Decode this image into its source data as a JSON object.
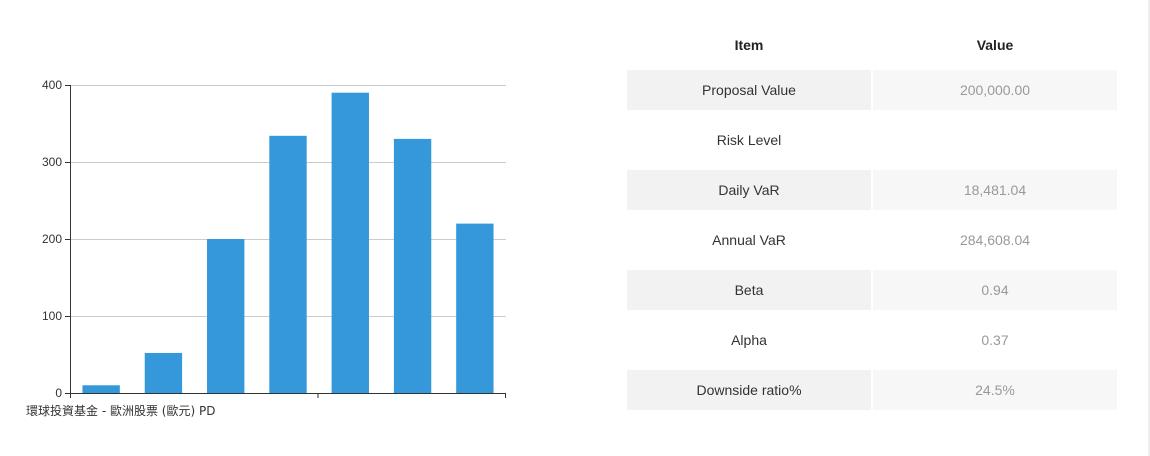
{
  "colors": {
    "bar": "#3498db",
    "grid": "#cccccc",
    "axis": "#333333"
  },
  "chart_data": {
    "type": "bar",
    "series_label": "環球投資基金 - 歐洲股票 (歐元) PD",
    "categories": [
      "",
      "",
      "",
      "",
      "",
      "",
      ""
    ],
    "values": [
      10,
      52,
      200,
      334,
      390,
      330,
      220
    ],
    "yticks": [
      0,
      100,
      200,
      300,
      400
    ],
    "ylim": [
      0,
      400
    ],
    "grid": true
  },
  "table": {
    "headers": {
      "item": "Item",
      "value": "Value"
    },
    "rows": [
      {
        "item": "Proposal Value",
        "value": "200,000.00"
      },
      {
        "item": "Risk Level",
        "value": ""
      },
      {
        "item": "Daily VaR",
        "value": "18,481.04"
      },
      {
        "item": "Annual VaR",
        "value": "284,608.04"
      },
      {
        "item": "Beta",
        "value": "0.94"
      },
      {
        "item": "Alpha",
        "value": "0.37"
      },
      {
        "item": "Downside ratio%",
        "value": "24.5%"
      }
    ]
  }
}
